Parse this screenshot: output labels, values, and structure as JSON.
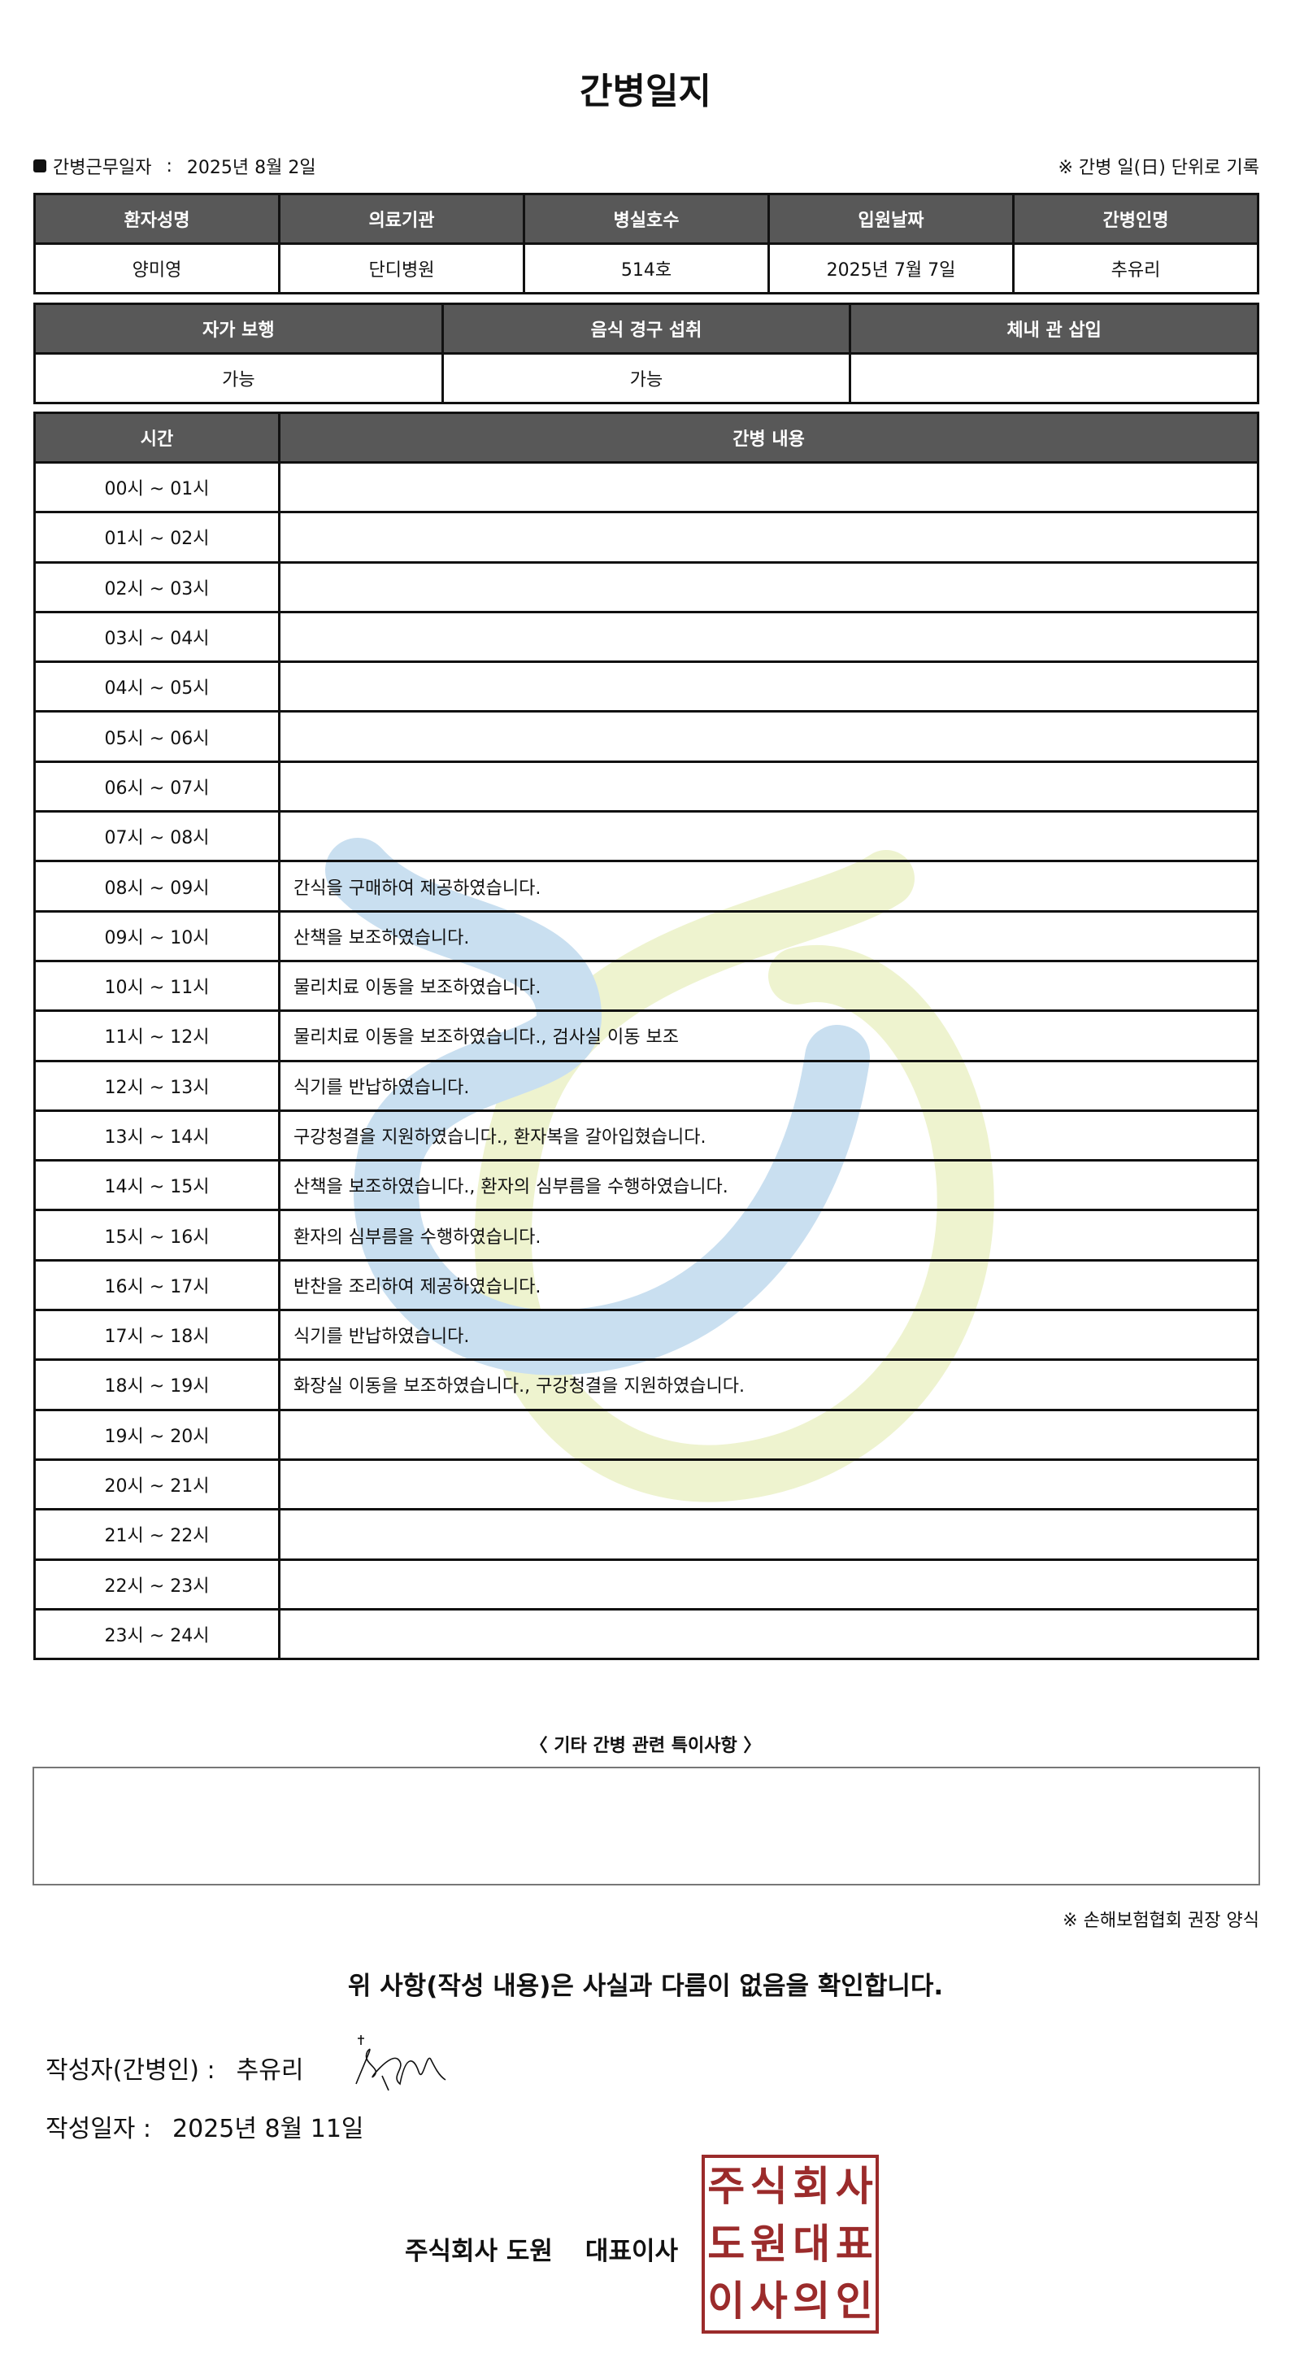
{
  "title": "간병일지",
  "work_date": {
    "label": "간병근무일자",
    "sep": ":",
    "value": "2025년 8월 2일"
  },
  "unit_note": "※ 간병 일(日) 단위로 기록",
  "info_table": {
    "headers": [
      "환자성명",
      "의료기관",
      "병실호수",
      "입원날짜",
      "간병인명"
    ],
    "values": [
      "양미영",
      "단디병원",
      "514호",
      "2025년 7월 7일",
      "추유리"
    ]
  },
  "status_table": {
    "headers": [
      "자가 보행",
      "음식 경구 섭취",
      "체내 관 삽입"
    ],
    "values": [
      "가능",
      "가능",
      ""
    ]
  },
  "care_table": {
    "headers": [
      "시간",
      "간병 내용"
    ],
    "rows": [
      {
        "time": "00시 ~ 01시",
        "content": ""
      },
      {
        "time": "01시 ~ 02시",
        "content": ""
      },
      {
        "time": "02시 ~ 03시",
        "content": ""
      },
      {
        "time": "03시 ~ 04시",
        "content": ""
      },
      {
        "time": "04시 ~ 05시",
        "content": ""
      },
      {
        "time": "05시 ~ 06시",
        "content": ""
      },
      {
        "time": "06시 ~ 07시",
        "content": ""
      },
      {
        "time": "07시 ~ 08시",
        "content": ""
      },
      {
        "time": "08시 ~ 09시",
        "content": "간식을 구매하여 제공하였습니다."
      },
      {
        "time": "09시 ~ 10시",
        "content": "산책을 보조하였습니다."
      },
      {
        "time": "10시 ~ 11시",
        "content": "물리치료 이동을 보조하였습니다."
      },
      {
        "time": "11시 ~ 12시",
        "content": "물리치료 이동을 보조하였습니다., 검사실 이동 보조"
      },
      {
        "time": "12시 ~ 13시",
        "content": "식기를 반납하였습니다."
      },
      {
        "time": "13시 ~ 14시",
        "content": "구강청결을 지원하였습니다., 환자복을 갈아입혔습니다."
      },
      {
        "time": "14시 ~ 15시",
        "content": "산책을 보조하였습니다., 환자의 심부름을 수행하였습니다."
      },
      {
        "time": "15시 ~ 16시",
        "content": "환자의 심부름을 수행하였습니다."
      },
      {
        "time": "16시 ~ 17시",
        "content": "반찬을 조리하여 제공하였습니다."
      },
      {
        "time": "17시 ~ 18시",
        "content": "식기를 반납하였습니다."
      },
      {
        "time": "18시 ~ 19시",
        "content": "화장실 이동을 보조하였습니다., 구강청결을 지원하였습니다."
      },
      {
        "time": "19시 ~ 20시",
        "content": ""
      },
      {
        "time": "20시 ~ 21시",
        "content": ""
      },
      {
        "time": "21시 ~ 22시",
        "content": ""
      },
      {
        "time": "22시 ~ 23시",
        "content": ""
      },
      {
        "time": "23시 ~ 24시",
        "content": ""
      }
    ]
  },
  "notes": {
    "label": "〈 기타 간병 관련 특이사항 〉",
    "value": ""
  },
  "assoc_note": "※ 손해보험협회 권장 양식",
  "confirm_text": "위 사항(작성 내용)은 사실과 다름이 없음을 확인합니다.",
  "author": {
    "label": "작성자(간병인) :",
    "value": "추유리"
  },
  "written_date": {
    "label": "작성일자 :",
    "value": "2025년 8월 11일"
  },
  "company": {
    "name": "주식회사 도원",
    "title": "대표이사"
  },
  "stamp": {
    "text": "주식회사도원대표이사의인",
    "color": "#9b2b2b"
  },
  "watermark_colors": {
    "blue": "#c9dff0",
    "green": "#eef3cf"
  }
}
